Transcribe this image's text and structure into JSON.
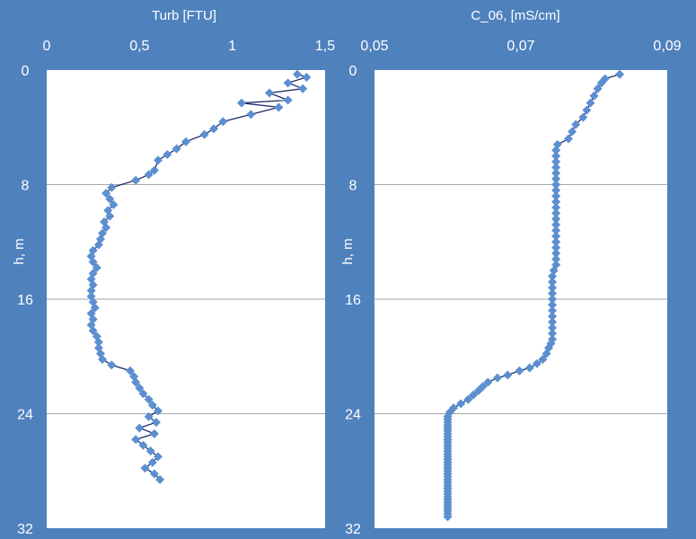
{
  "colors": {
    "background": "#4f81bd",
    "plot_area": "#ffffff",
    "gridline": "#a6a6a6",
    "marker": "#5b8fd0",
    "line": "#1f2a6b",
    "text": "#ffffff"
  },
  "chart_data": [
    {
      "type": "line",
      "title": "Turb [FTU]",
      "xlabel": "",
      "ylabel": "h, m",
      "xlim": [
        0,
        1.5
      ],
      "ylim": [
        0,
        32
      ],
      "y_inverted": true,
      "x_axis_position": "top",
      "grid": "horizontal",
      "xticks": [
        0,
        0.5,
        1,
        1.5
      ],
      "xtick_labels": [
        "0",
        "0,5",
        "1",
        "1,5"
      ],
      "yticks": [
        0,
        8,
        16,
        24,
        32
      ],
      "ytick_labels": [
        "0",
        "8",
        "16",
        "24",
        "32"
      ],
      "series": [
        {
          "x": [
            1.35,
            1.4,
            1.3,
            1.38,
            1.2,
            1.3,
            1.05,
            1.25,
            1.1,
            0.95,
            0.9,
            0.85,
            0.75,
            0.7,
            0.65,
            0.6,
            0.58,
            0.55,
            0.48,
            0.35,
            0.32,
            0.34,
            0.36,
            0.33,
            0.34,
            0.31,
            0.32,
            0.3,
            0.29,
            0.28,
            0.25,
            0.24,
            0.25,
            0.27,
            0.25,
            0.24,
            0.25,
            0.24,
            0.24,
            0.25,
            0.26,
            0.24,
            0.25,
            0.24,
            0.25,
            0.27,
            0.28,
            0.28,
            0.29,
            0.3,
            0.35,
            0.45,
            0.47,
            0.48,
            0.5,
            0.52,
            0.55,
            0.57,
            0.6,
            0.55,
            0.59,
            0.5,
            0.58,
            0.48,
            0.52,
            0.56,
            0.6,
            0.57,
            0.53,
            0.58,
            0.61
          ],
          "y": [
            0.3,
            0.5,
            0.9,
            1.3,
            1.6,
            2.1,
            2.3,
            2.6,
            3.1,
            3.6,
            4.1,
            4.5,
            5.0,
            5.5,
            5.9,
            6.3,
            7.0,
            7.3,
            7.7,
            8.2,
            8.6,
            9.0,
            9.4,
            9.8,
            10.2,
            10.6,
            11.0,
            11.4,
            11.8,
            12.2,
            12.6,
            13.0,
            13.4,
            13.8,
            14.2,
            14.6,
            15.0,
            15.4,
            15.8,
            16.2,
            16.6,
            17.0,
            17.4,
            17.8,
            18.2,
            18.6,
            19.0,
            19.4,
            19.8,
            20.2,
            20.6,
            21.0,
            21.4,
            21.8,
            22.2,
            22.6,
            23.0,
            23.4,
            23.8,
            24.2,
            24.6,
            25.0,
            25.4,
            25.8,
            26.2,
            26.6,
            27.0,
            27.4,
            27.8,
            28.2,
            28.6
          ]
        }
      ]
    },
    {
      "type": "line",
      "title": "C_06, [mS/cm]",
      "xlabel": "",
      "ylabel": "h, m",
      "xlim": [
        0.05,
        0.09
      ],
      "ylim": [
        0,
        32
      ],
      "y_inverted": true,
      "x_axis_position": "top",
      "grid": "horizontal",
      "xticks": [
        0.05,
        0.07,
        0.09
      ],
      "xtick_labels": [
        "0,05",
        "0,07",
        "0,09"
      ],
      "yticks": [
        0,
        8,
        16,
        24,
        32
      ],
      "ytick_labels": [
        "0",
        "8",
        "16",
        "24",
        "32"
      ],
      "series": [
        {
          "x": [
            0.0835,
            0.0815,
            0.081,
            0.0805,
            0.08,
            0.0795,
            0.079,
            0.0785,
            0.0775,
            0.077,
            0.0765,
            0.075,
            0.0748,
            0.0748,
            0.0748,
            0.0748,
            0.0748,
            0.0748,
            0.0748,
            0.0748,
            0.0748,
            0.0748,
            0.0748,
            0.0748,
            0.0748,
            0.0748,
            0.0748,
            0.0748,
            0.0748,
            0.0748,
            0.0748,
            0.0748,
            0.0748,
            0.0745,
            0.0743,
            0.0743,
            0.0743,
            0.0743,
            0.0743,
            0.0743,
            0.0743,
            0.0743,
            0.0743,
            0.0743,
            0.0743,
            0.0743,
            0.0741,
            0.0738,
            0.0735,
            0.073,
            0.0722,
            0.0712,
            0.0698,
            0.0682,
            0.0668,
            0.0655,
            0.0648,
            0.0642,
            0.0635,
            0.0628,
            0.0618,
            0.0608,
            0.0603,
            0.06,
            0.06,
            0.06,
            0.06,
            0.06,
            0.06,
            0.06,
            0.06,
            0.06,
            0.06,
            0.06,
            0.06,
            0.06,
            0.06,
            0.06,
            0.06,
            0.06,
            0.06,
            0.06,
            0.06,
            0.06,
            0.06,
            0.06,
            0.06,
            0.06,
            0.06,
            0.06,
            0.06,
            0.06,
            0.06,
            0.06,
            0.06,
            0.06,
            0.06,
            0.06,
            0.06
          ],
          "y": [
            0.3,
            0.6,
            0.9,
            1.3,
            1.8,
            2.3,
            2.8,
            3.3,
            3.8,
            4.3,
            4.8,
            5.2,
            5.6,
            6.0,
            6.4,
            6.8,
            7.2,
            7.6,
            8.0,
            8.4,
            8.8,
            9.2,
            9.6,
            10.0,
            10.4,
            10.8,
            11.2,
            11.6,
            12.0,
            12.4,
            12.8,
            13.2,
            13.6,
            14.0,
            14.4,
            14.8,
            15.2,
            15.6,
            16.0,
            16.4,
            16.8,
            17.2,
            17.6,
            18.0,
            18.4,
            18.8,
            19.1,
            19.4,
            19.8,
            20.2,
            20.5,
            20.8,
            21.0,
            21.3,
            21.5,
            21.8,
            22.1,
            22.4,
            22.7,
            23.0,
            23.3,
            23.6,
            23.9,
            24.2,
            24.4,
            24.6,
            24.8,
            25.0,
            25.2,
            25.4,
            25.6,
            25.8,
            26.0,
            26.2,
            26.4,
            26.6,
            26.8,
            27.0,
            27.2,
            27.4,
            27.6,
            27.8,
            28.0,
            28.2,
            28.4,
            28.6,
            28.8,
            29.0,
            29.2,
            29.4,
            29.6,
            29.8,
            30.0,
            30.2,
            30.4,
            30.6,
            30.8,
            31.0,
            31.2
          ]
        }
      ]
    }
  ]
}
